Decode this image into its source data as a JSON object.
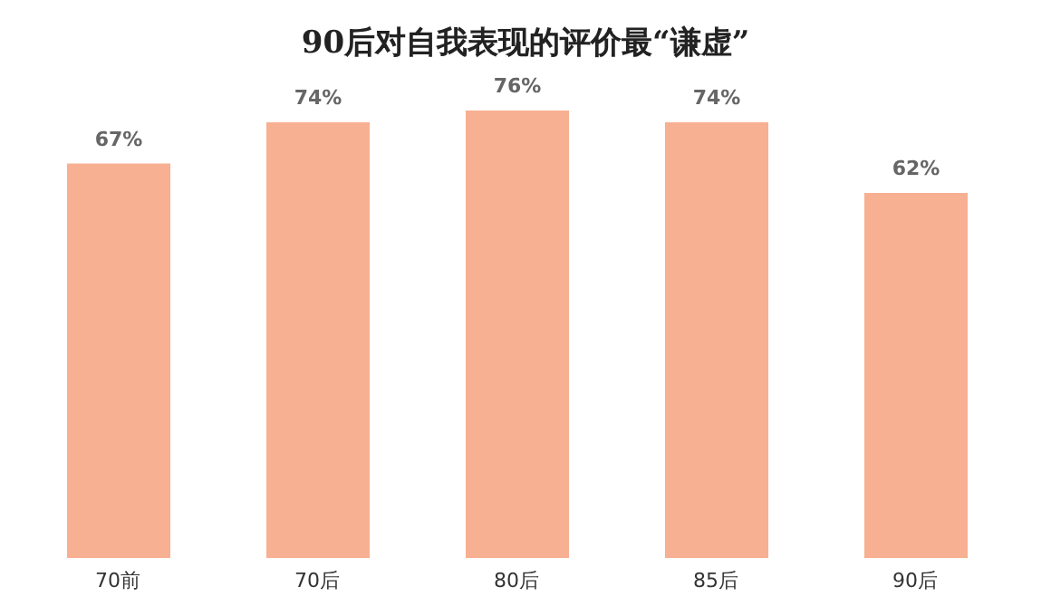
{
  "chart_data": {
    "type": "bar",
    "title": "90后对自我表现的评价最“谦虚”",
    "categories": [
      "70前",
      "70后",
      "80后",
      "85后",
      "90后"
    ],
    "values": [
      67,
      74,
      76,
      74,
      62
    ],
    "value_labels": [
      "67%",
      "74%",
      "76%",
      "74%",
      "62%"
    ],
    "color": "#f7b092",
    "tick_labels": "x",
    "grid": false,
    "legend": false
  }
}
